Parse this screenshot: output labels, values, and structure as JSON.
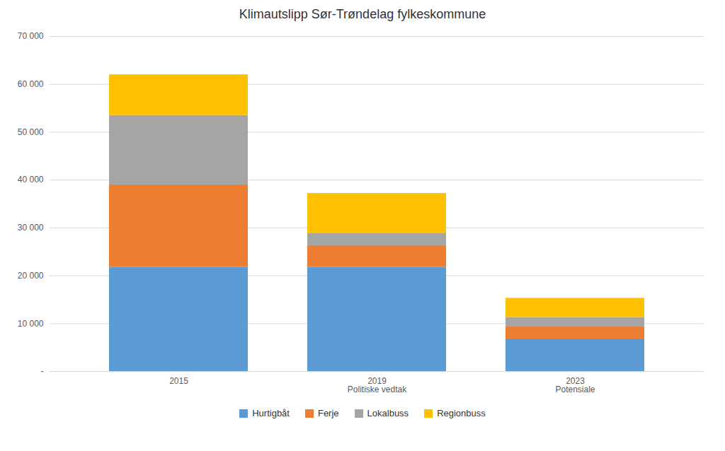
{
  "chart_data": {
    "type": "bar",
    "stacked": true,
    "title": "Klimautslipp Sør-Trøndelag fylkeskommune",
    "categories": [
      "2015",
      "2019",
      "2023"
    ],
    "sublabels": [
      null,
      "Politiske vedtak",
      "Potensiale"
    ],
    "series": [
      {
        "name": "Hurtigbåt",
        "color": "#5B9BD5",
        "values": [
          21800,
          21800,
          6800
        ]
      },
      {
        "name": "Ferje",
        "color": "#ED7D31",
        "values": [
          17200,
          4500,
          2500
        ]
      },
      {
        "name": "Lokalbuss",
        "color": "#A5A5A5",
        "values": [
          14500,
          2500,
          2000
        ]
      },
      {
        "name": "Regionbuss",
        "color": "#FFC000",
        "values": [
          8500,
          8400,
          4000
        ]
      }
    ],
    "ylim": [
      0,
      70000
    ],
    "yticks": [
      {
        "value": 0,
        "label": "-"
      },
      {
        "value": 10000,
        "label": "10 000"
      },
      {
        "value": 20000,
        "label": "20 000"
      },
      {
        "value": 30000,
        "label": "30 000"
      },
      {
        "value": 40000,
        "label": "40 000"
      },
      {
        "value": 50000,
        "label": "50 000"
      },
      {
        "value": 60000,
        "label": "60 000"
      },
      {
        "value": 70000,
        "label": "70 000"
      }
    ],
    "grid": true,
    "legend": "bottom"
  }
}
